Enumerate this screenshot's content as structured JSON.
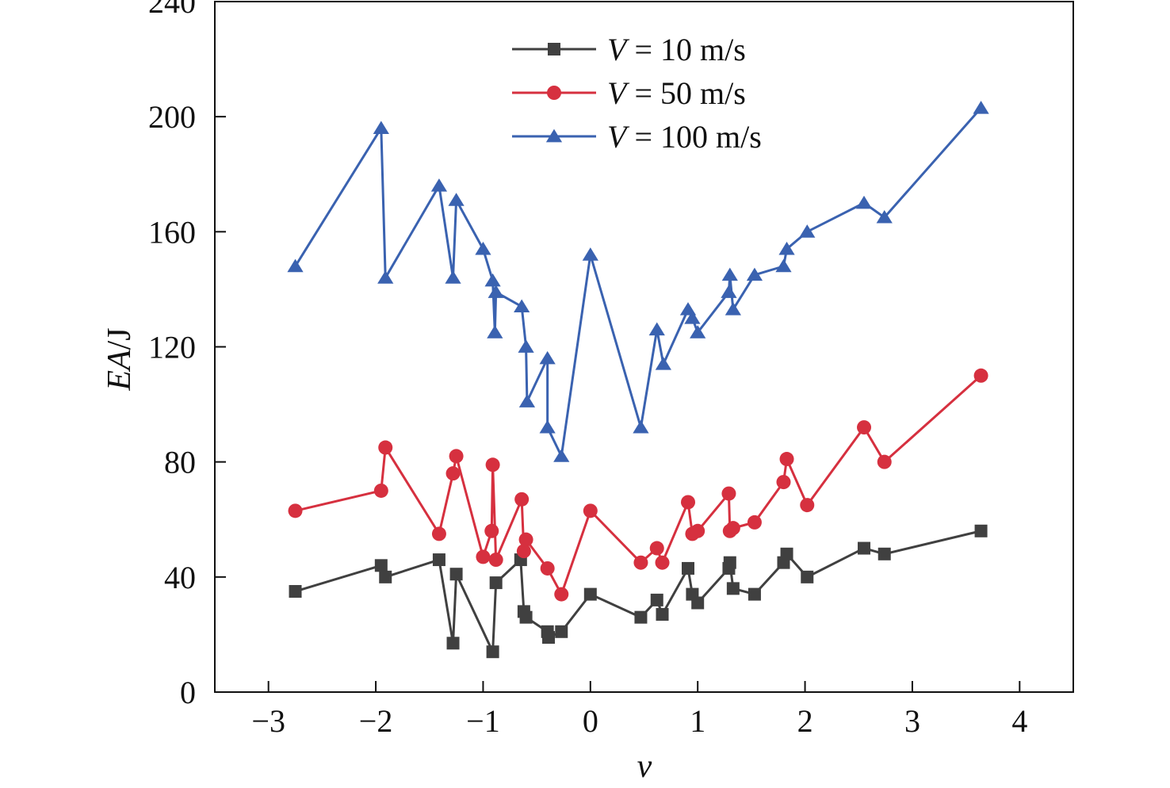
{
  "chart_data": {
    "type": "line",
    "xlabel": "v",
    "ylabel": "EA/J",
    "xlim": [
      -3.5,
      4.5
    ],
    "ylim": [
      0,
      240
    ],
    "xticks": [
      -3,
      -2,
      -1,
      0,
      1,
      2,
      3,
      4
    ],
    "xtick_labels": [
      "−3",
      "−2",
      "−1",
      "0",
      "1",
      "2",
      "3",
      "4"
    ],
    "yticks": [
      0,
      40,
      80,
      120,
      160,
      200,
      240
    ],
    "ytick_labels": [
      "0",
      "40",
      "80",
      "120",
      "160",
      "200",
      "240"
    ],
    "grid": false,
    "legend_position": "top-center",
    "series": [
      {
        "name": "V = 10 m/s",
        "legend_var": "V",
        "legend_rest": " = 10 m/s",
        "color": "#404040",
        "marker": "square",
        "x": [
          -2.75,
          -1.95,
          -1.91,
          -1.41,
          -1.28,
          -1.25,
          -0.91,
          -0.88,
          -0.65,
          -0.62,
          -0.6,
          -0.4,
          -0.39,
          -0.27,
          0.0,
          0.47,
          0.62,
          0.67,
          0.91,
          0.95,
          1.0,
          1.29,
          1.3,
          1.33,
          1.53,
          1.8,
          1.83,
          2.02,
          2.55,
          2.74,
          3.64
        ],
        "y": [
          35,
          44,
          40,
          46,
          17,
          41,
          14,
          38,
          46,
          28,
          26,
          21,
          19,
          21,
          34,
          26,
          32,
          27,
          43,
          34,
          31,
          43,
          45,
          36,
          34,
          45,
          48,
          40,
          50,
          48,
          56
        ]
      },
      {
        "name": "V = 50 m/s",
        "legend_var": "V",
        "legend_rest": " = 50 m/s",
        "color": "#d6303f",
        "marker": "circle",
        "x": [
          -2.75,
          -1.95,
          -1.91,
          -1.41,
          -1.28,
          -1.25,
          -1.0,
          -0.92,
          -0.91,
          -0.88,
          -0.64,
          -0.62,
          -0.6,
          -0.4,
          -0.27,
          0.0,
          0.47,
          0.62,
          0.67,
          0.91,
          0.95,
          1.0,
          1.29,
          1.3,
          1.33,
          1.53,
          1.8,
          1.83,
          2.02,
          2.55,
          2.74,
          3.64
        ],
        "y": [
          63,
          70,
          85,
          55,
          76,
          82,
          47,
          56,
          79,
          46,
          67,
          49,
          53,
          43,
          34,
          63,
          45,
          50,
          45,
          66,
          55,
          56,
          69,
          56,
          57,
          59,
          73,
          81,
          65,
          92,
          80,
          110
        ]
      },
      {
        "name": "V = 100 m/s",
        "legend_var": "V",
        "legend_rest": " = 100 m/s",
        "color": "#3a62b0",
        "marker": "triangle",
        "x": [
          -2.75,
          -1.95,
          -1.91,
          -1.41,
          -1.28,
          -1.25,
          -1.0,
          -0.91,
          -0.89,
          -0.88,
          -0.64,
          -0.6,
          -0.59,
          -0.4,
          -0.4,
          -0.27,
          0.0,
          0.47,
          0.62,
          0.68,
          0.91,
          0.95,
          1.0,
          1.29,
          1.3,
          1.33,
          1.53,
          1.8,
          1.83,
          2.02,
          2.55,
          2.74,
          3.64
        ],
        "y": [
          148,
          196,
          144,
          176,
          144,
          171,
          154,
          143,
          125,
          139,
          134,
          120,
          101,
          116,
          92,
          82,
          152,
          92,
          126,
          114,
          133,
          130,
          125,
          139,
          145,
          133,
          145,
          148,
          154,
          160,
          170,
          165,
          203
        ]
      }
    ]
  }
}
